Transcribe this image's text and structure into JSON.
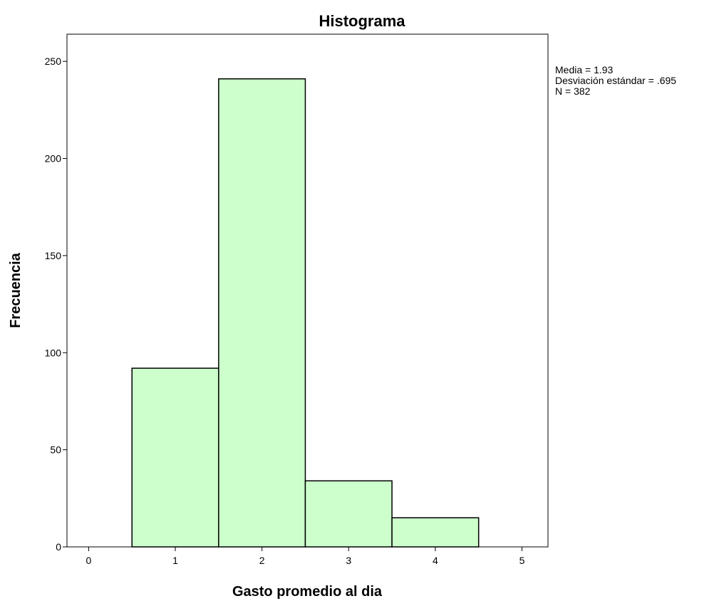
{
  "chart_data": {
    "type": "bar",
    "title": "Histograma",
    "xlabel": "Gasto promedio al dia",
    "ylabel": "Frecuencia",
    "bins": [
      {
        "x0": 0.5,
        "x1": 1.5,
        "count": 92
      },
      {
        "x0": 1.5,
        "x1": 2.5,
        "count": 241
      },
      {
        "x0": 2.5,
        "x1": 3.5,
        "count": 34
      },
      {
        "x0": 3.5,
        "x1": 4.5,
        "count": 15
      }
    ],
    "xlim": [
      -0.25,
      5.3
    ],
    "ylim": [
      0,
      264
    ],
    "xticks": [
      0,
      1,
      2,
      3,
      4,
      5
    ],
    "yticks": [
      0,
      50,
      100,
      150,
      200,
      250
    ],
    "bar_color": "#ccffcc",
    "bar_edge_color": "#000000",
    "grid": false,
    "stats": {
      "mean_line": "Media = 1.93",
      "std_line": "Desviación estándar = .695",
      "n_line": "N = 382"
    }
  }
}
